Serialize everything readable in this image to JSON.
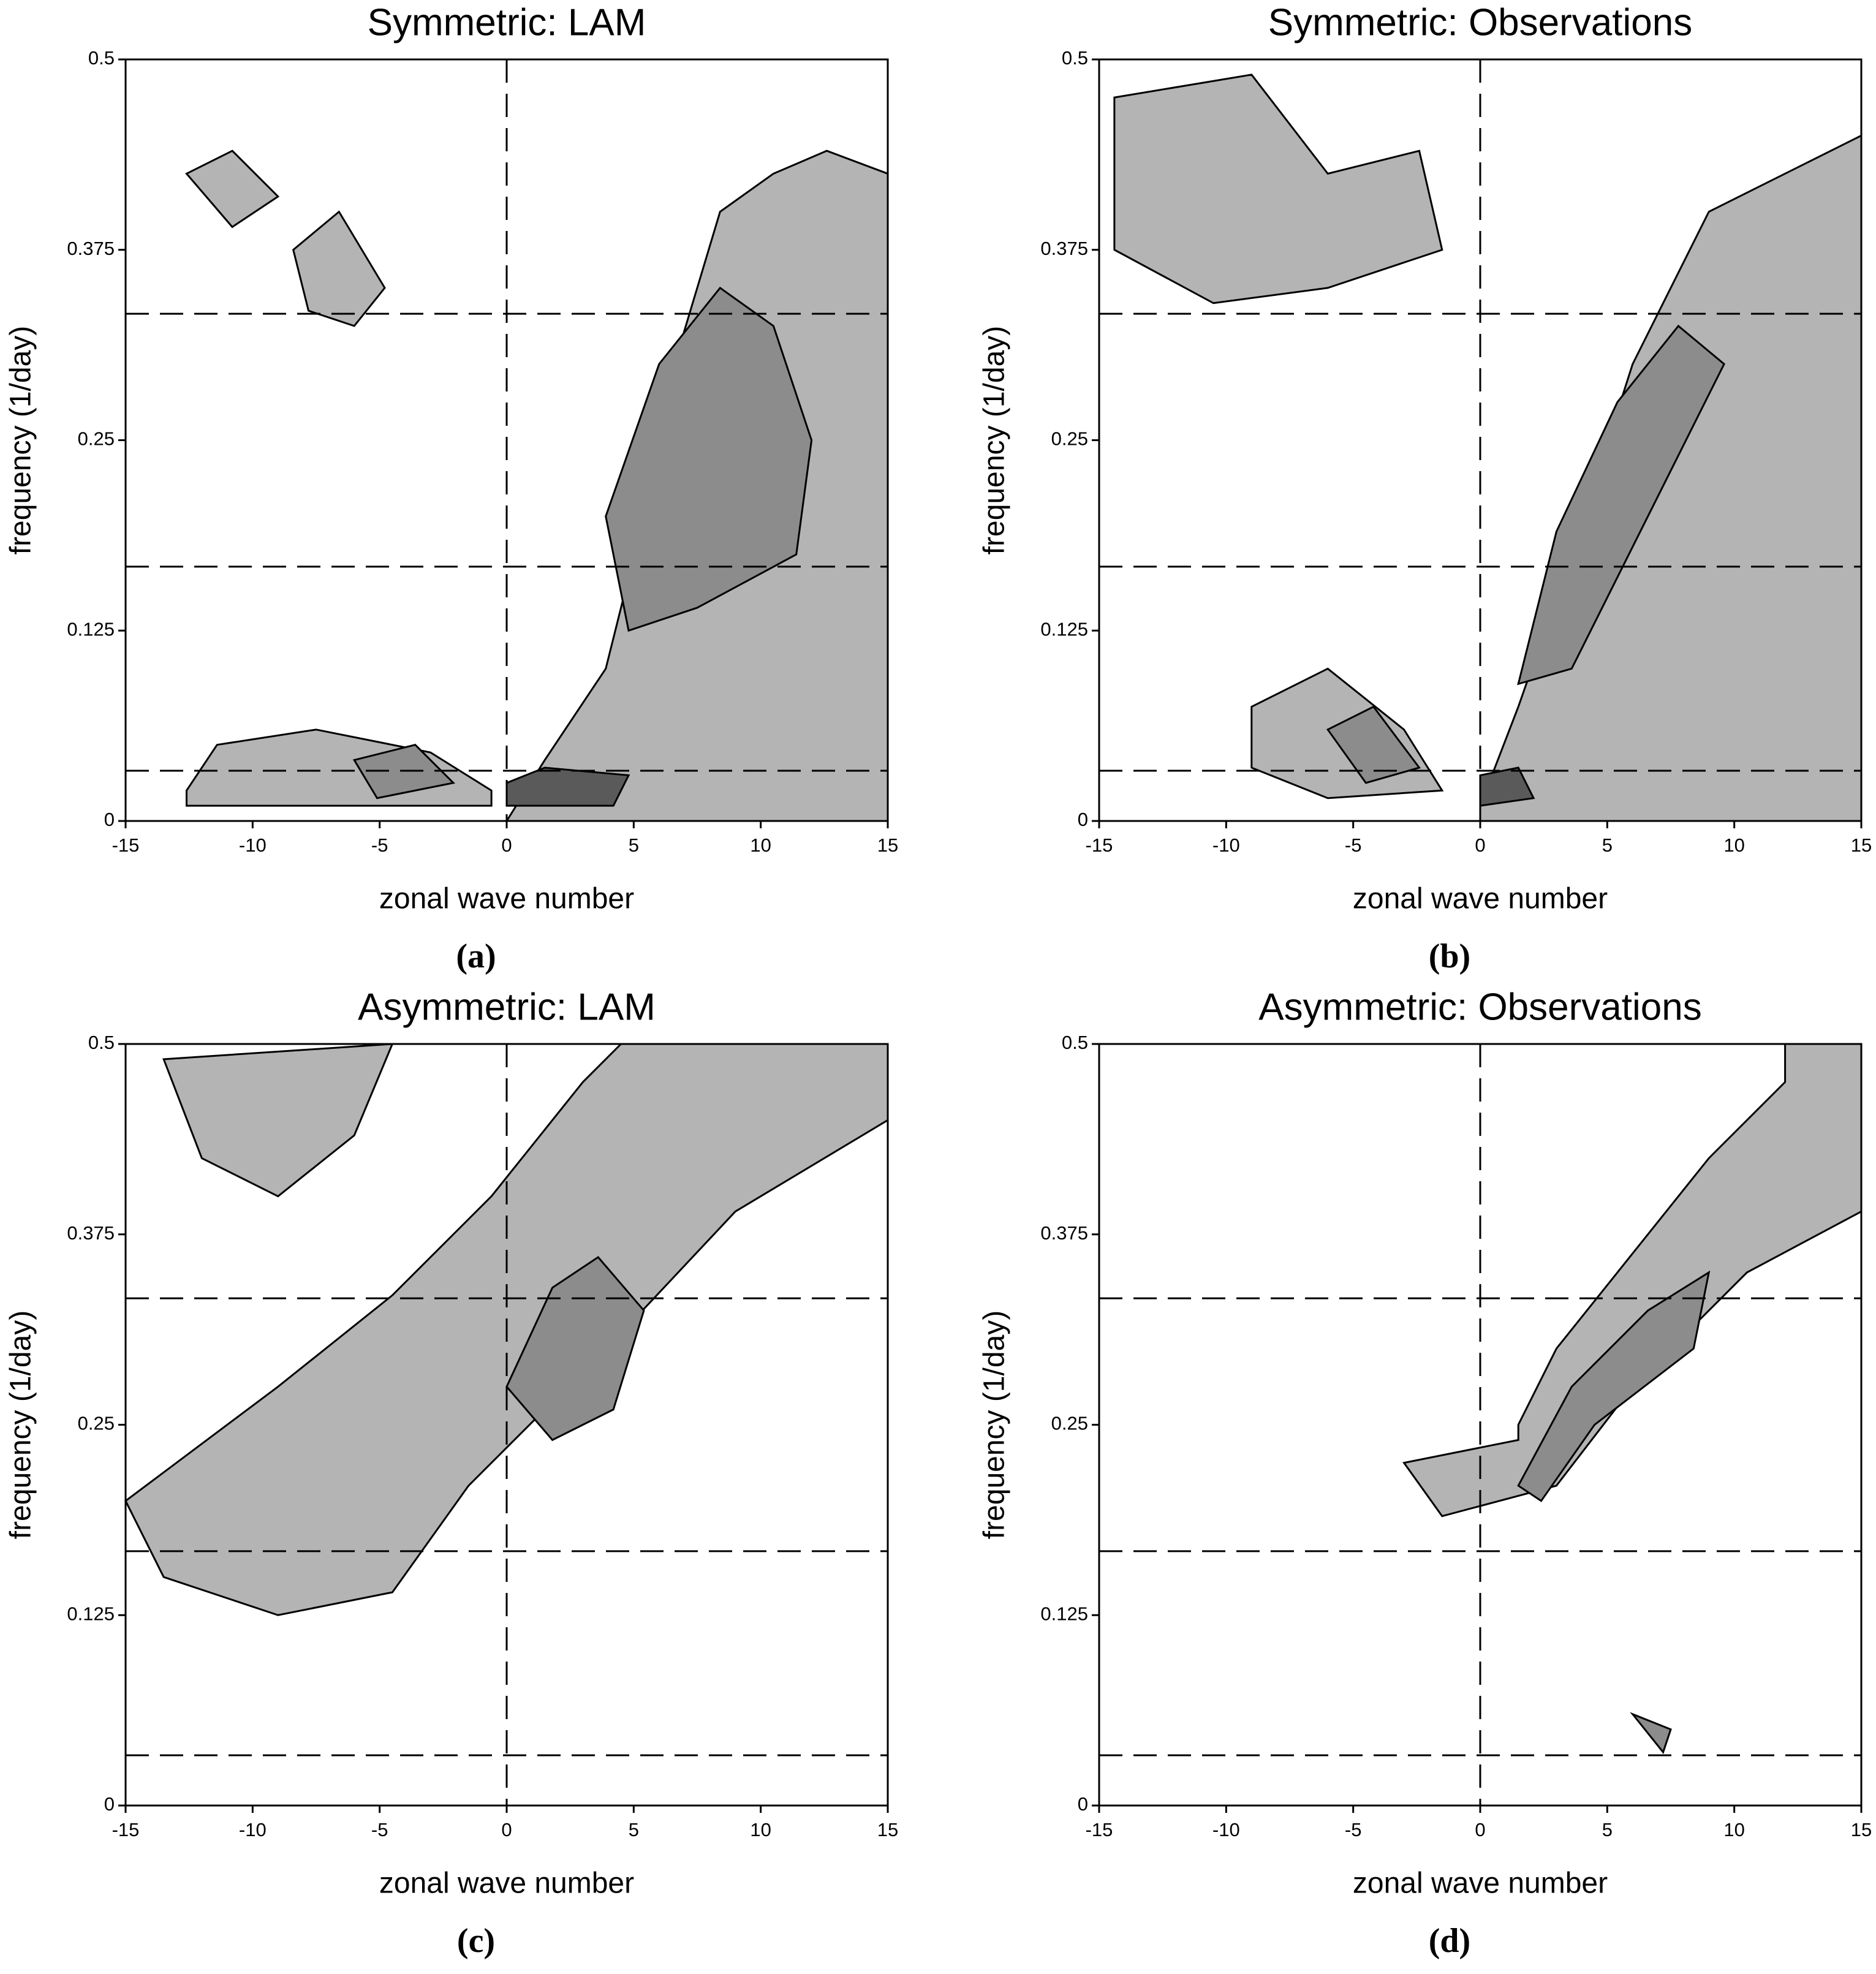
{
  "chart_data": [
    {
      "type": "contour",
      "title": "Symmetric: LAM",
      "panel_label": "(a)",
      "xlabel": "zonal wave number",
      "ylabel": "frequency (1/day)",
      "xlim": [
        -15,
        15
      ],
      "ylim": [
        0,
        0.5
      ],
      "xticks": [
        -15,
        -10,
        -5,
        0,
        5,
        10,
        15
      ],
      "yticks": [
        0,
        0.125,
        0.25,
        0.375,
        0.5
      ],
      "reference_lines": {
        "x": [
          0
        ],
        "y": [
          0.333,
          0.167,
          0.033
        ]
      }
    },
    {
      "type": "contour",
      "title": "Symmetric: Observations",
      "panel_label": "(b)",
      "xlabel": "zonal wave number",
      "ylabel": "frequency (1/day)",
      "xlim": [
        -15,
        15
      ],
      "ylim": [
        0,
        0.5
      ],
      "xticks": [
        -15,
        -10,
        -5,
        0,
        5,
        10,
        15
      ],
      "yticks": [
        0,
        0.125,
        0.25,
        0.375,
        0.5
      ],
      "reference_lines": {
        "x": [
          0
        ],
        "y": [
          0.333,
          0.167,
          0.033
        ]
      }
    },
    {
      "type": "contour",
      "title": "Asymmetric: LAM",
      "panel_label": "(c)",
      "xlabel": "zonal wave number",
      "ylabel": "frequency (1/day)",
      "xlim": [
        -15,
        15
      ],
      "ylim": [
        0,
        0.5
      ],
      "xticks": [
        -15,
        -10,
        -5,
        0,
        5,
        10,
        15
      ],
      "yticks": [
        0,
        0.125,
        0.25,
        0.375,
        0.5
      ],
      "reference_lines": {
        "x": [
          0
        ],
        "y": [
          0.333,
          0.167,
          0.033
        ]
      }
    },
    {
      "type": "contour",
      "title": "Asymmetric: Observations",
      "panel_label": "(d)",
      "xlabel": "zonal wave number",
      "ylabel": "frequency (1/day)",
      "xlim": [
        -15,
        15
      ],
      "ylim": [
        0,
        0.5
      ],
      "xticks": [
        -15,
        -10,
        -5,
        0,
        5,
        10,
        15
      ],
      "yticks": [
        0,
        0.125,
        0.25,
        0.375,
        0.5
      ],
      "reference_lines": {
        "x": [
          0
        ],
        "y": [
          0.333,
          0.167,
          0.033
        ]
      }
    }
  ]
}
